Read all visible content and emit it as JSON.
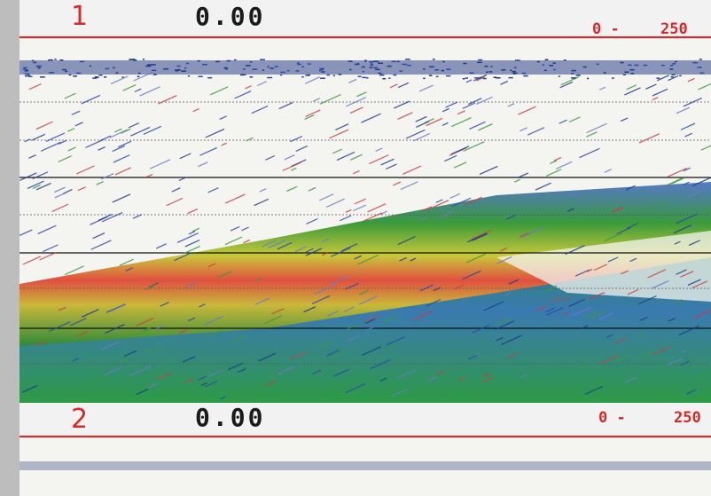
{
  "panels": [
    {
      "number": "1",
      "value": "0.00",
      "range_start": "0 -",
      "range_end": "250"
    },
    {
      "number": "2",
      "value": "0.00",
      "range_start": "0 -",
      "range_end": "250"
    }
  ]
}
